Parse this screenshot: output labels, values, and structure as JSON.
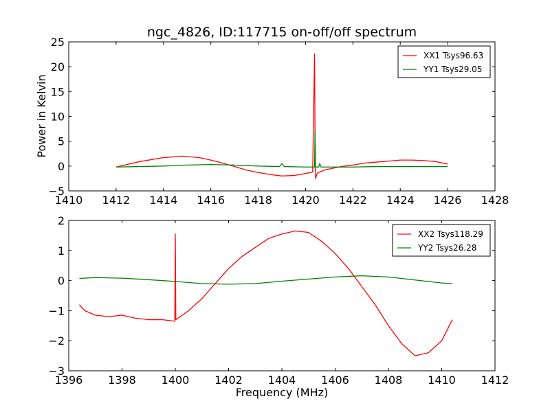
{
  "chart_data": [
    {
      "type": "line",
      "title": "ngc_4826, ID:117715 on-off/off spectrum",
      "xlabel": "",
      "ylabel": "Power in Kelvin",
      "xlim": [
        1410,
        1428
      ],
      "ylim": [
        -5,
        25
      ],
      "xticks": [
        1410,
        1412,
        1414,
        1416,
        1418,
        1420,
        1422,
        1424,
        1426,
        1428
      ],
      "yticks": [
        -5,
        0,
        5,
        10,
        15,
        20,
        25
      ],
      "legend_position": "top-right",
      "grid": false,
      "series": [
        {
          "name": "XX1 Tsys96.63",
          "color": "#ff0000",
          "x": [
            1412,
            1413,
            1414,
            1414.8,
            1415.5,
            1416,
            1416.5,
            1417,
            1417.5,
            1418,
            1418.5,
            1419,
            1419.5,
            1420,
            1420.3,
            1420.38,
            1420.4,
            1420.42,
            1420.5,
            1420.6,
            1420.8,
            1421,
            1421.5,
            1422,
            1422.5,
            1423,
            1423.5,
            1424,
            1424.5,
            1425,
            1425.5,
            1426
          ],
          "y": [
            -0.2,
            0.9,
            1.7,
            2.0,
            1.7,
            1.2,
            0.6,
            -0.1,
            -0.8,
            -1.3,
            -1.7,
            -2.0,
            -1.9,
            -1.5,
            -1.2,
            22.6,
            6.0,
            -2.5,
            -1.4,
            -1.2,
            -0.8,
            -0.6,
            -0.1,
            0.2,
            0.6,
            0.8,
            1.0,
            1.2,
            1.2,
            1.1,
            0.9,
            0.4
          ]
        },
        {
          "name": "YY1 Tsys29.05",
          "color": "#007f00",
          "x": [
            1412,
            1413,
            1414,
            1415,
            1416,
            1417,
            1418,
            1418.9,
            1419,
            1419.1,
            1420,
            1420.38,
            1420.4,
            1420.42,
            1420.55,
            1420.6,
            1420.65,
            1421,
            1422,
            1423,
            1424,
            1425,
            1426
          ],
          "y": [
            -0.2,
            -0.1,
            0.0,
            0.2,
            0.3,
            0.2,
            0.0,
            -0.1,
            0.5,
            -0.1,
            -0.2,
            -0.2,
            7.0,
            -0.2,
            -0.2,
            0.5,
            -0.2,
            -0.2,
            -0.2,
            -0.1,
            -0.1,
            -0.1,
            -0.1
          ]
        }
      ]
    },
    {
      "type": "line",
      "title": "",
      "xlabel": "Frequency (MHz)",
      "ylabel": "",
      "xlim": [
        1396,
        1412
      ],
      "ylim": [
        -3,
        2
      ],
      "xticks": [
        1396,
        1398,
        1400,
        1402,
        1404,
        1406,
        1408,
        1410,
        1412
      ],
      "yticks": [
        -3,
        -2,
        -1,
        0,
        1,
        2
      ],
      "legend_position": "top-right",
      "grid": false,
      "series": [
        {
          "name": "XX2 Tsys118.29",
          "color": "#ff0000",
          "x": [
            1396.4,
            1396.6,
            1397,
            1397.5,
            1398,
            1398.5,
            1399,
            1399.5,
            1399.98,
            1400,
            1400.02,
            1400.5,
            1401,
            1401.5,
            1402,
            1402.5,
            1403,
            1403.5,
            1404,
            1404.5,
            1405,
            1405.5,
            1406,
            1406.5,
            1407,
            1407.5,
            1408,
            1408.5,
            1409,
            1409.5,
            1410,
            1410.4
          ],
          "y": [
            -0.8,
            -1.0,
            -1.15,
            -1.2,
            -1.15,
            -1.25,
            -1.3,
            -1.3,
            -1.35,
            1.55,
            -1.3,
            -1.0,
            -0.6,
            -0.1,
            0.4,
            0.8,
            1.1,
            1.4,
            1.55,
            1.65,
            1.6,
            1.3,
            0.9,
            0.4,
            -0.2,
            -0.8,
            -1.5,
            -2.1,
            -2.5,
            -2.4,
            -2.0,
            -1.3
          ]
        },
        {
          "name": "YY2 Tsys26.28",
          "color": "#007f00",
          "x": [
            1396.4,
            1397,
            1398,
            1399,
            1400,
            1401,
            1402,
            1403,
            1404,
            1405,
            1406,
            1407,
            1408,
            1409,
            1410,
            1410.4
          ],
          "y": [
            0.07,
            0.1,
            0.08,
            0.03,
            -0.03,
            -0.1,
            -0.12,
            -0.1,
            -0.02,
            0.05,
            0.12,
            0.16,
            0.12,
            0.02,
            -0.08,
            -0.1
          ]
        }
      ]
    }
  ]
}
